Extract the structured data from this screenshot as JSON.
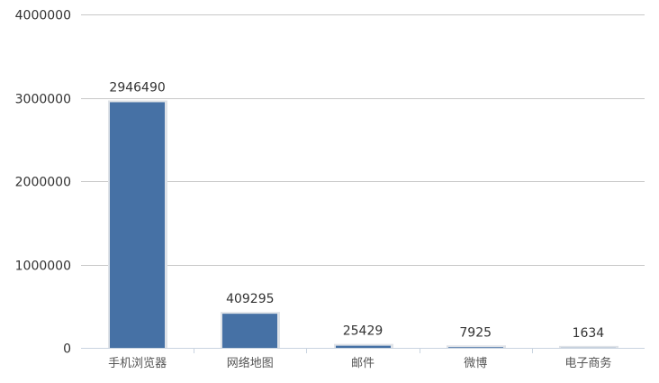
{
  "chart_data": {
    "type": "bar",
    "title": "",
    "xlabel": "",
    "ylabel": "",
    "categories": [
      "手机浏览器",
      "网络地图",
      "邮件",
      "微博",
      "电子商务"
    ],
    "values": [
      2946490,
      409295,
      25429,
      7925,
      1634
    ],
    "data_labels": [
      "2946490",
      "409295",
      "25429",
      "7925",
      "1634"
    ],
    "ylim": [
      0,
      4000000
    ],
    "yticks": [
      0,
      1000000,
      2000000,
      3000000,
      4000000
    ],
    "ytick_labels": [
      "0",
      "1000000",
      "2000000",
      "3000000",
      "4000000"
    ],
    "grid": true,
    "legend": "none",
    "colors": {
      "bar": "#4671a5",
      "bar_shadow": "#dfe3e8",
      "grid": "#c8c8c8",
      "axis": "#c9d4e0",
      "text": "#333333"
    }
  }
}
